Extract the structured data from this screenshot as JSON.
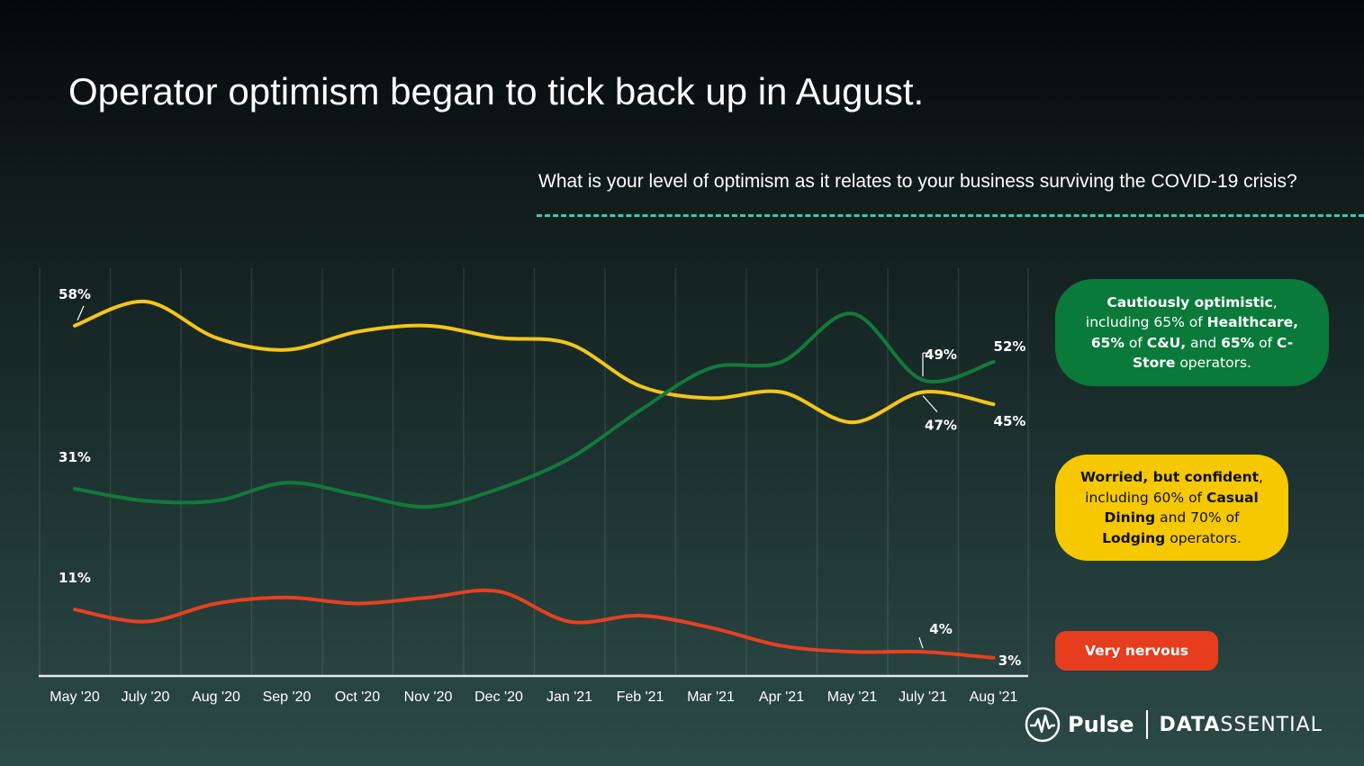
{
  "title": "Operator optimism began to tick back up in August.",
  "subtitle": "What is your level of optimism as it relates to your business surviving the COVID-19 crisis?",
  "chart_data": {
    "type": "line",
    "categories": [
      "May '20",
      "July '20",
      "Aug '20",
      "Sep '20",
      "Oct '20",
      "Nov '20",
      "Dec '20",
      "Jan '21",
      "Feb '21",
      "Mar '21",
      "Apr '21",
      "May '21",
      "July '21",
      "Aug '21"
    ],
    "ylim": [
      0,
      62
    ],
    "grid": "vertical",
    "series": [
      {
        "name": "Worried, but confident",
        "color": "#f5c518",
        "values": [
          58,
          62,
          56,
          54,
          57,
          58,
          56,
          55,
          48,
          46,
          47,
          42,
          47,
          45
        ],
        "labels": {
          "0": "58%",
          "12": "47%",
          "13": "45%"
        }
      },
      {
        "name": "Cautiously optimistic",
        "color": "#127a3a",
        "values": [
          31,
          29,
          29,
          32,
          30,
          28,
          31,
          36,
          44,
          51,
          52,
          60,
          49,
          52
        ],
        "labels": {
          "0": "31%",
          "12": "49%",
          "13": "52%"
        }
      },
      {
        "name": "Very nervous",
        "color": "#e8401f",
        "values": [
          11,
          9,
          12,
          13,
          12,
          13,
          14,
          9,
          10,
          8,
          5,
          4,
          4,
          3
        ],
        "labels": {
          "0": "11%",
          "12": "4%",
          "13": "3%"
        }
      }
    ]
  },
  "callouts": {
    "green": {
      "t1": "Cautiously optimistic",
      "t2": ", including 65% of ",
      "t3": "Healthcare,",
      "t4": "65%",
      "t5": " of ",
      "t6": "C&U,",
      "t7": " and ",
      "t8": "65%",
      "t9": " of ",
      "t10": "C-Store",
      "t11": " operators."
    },
    "yellow": {
      "t1": "Worried, but confident",
      "t2": ", including 60% of ",
      "t3": "Casual Dining",
      "t4": " and 70% of ",
      "t5": "Lodging",
      "t6": " operators."
    },
    "red": {
      "label": "Very nervous"
    }
  },
  "logo": {
    "product": "Pulse",
    "brand_bold": "DATA",
    "brand_rest": "SSENTIAL",
    "icon": "pulse-waveform-icon"
  }
}
